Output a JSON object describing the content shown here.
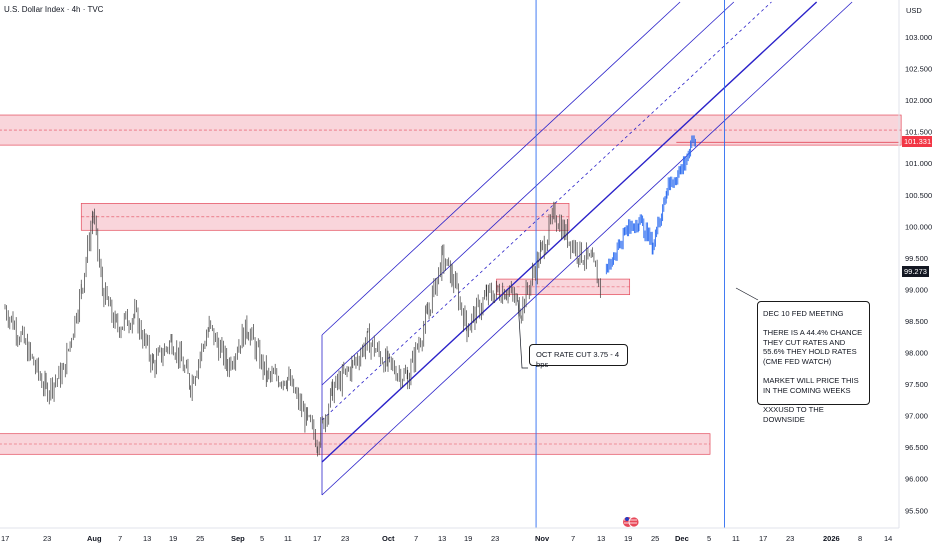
{
  "header": {
    "title": "U.S. Dollar Index · 4h · TVC",
    "unit": "USD"
  },
  "colors": {
    "zone_fill": "#f7c7cf",
    "zone_stroke": "#e34a5b",
    "channel": "#2b22c9",
    "vline": "#2f6df0",
    "candles": "#3a3a3a",
    "projection": "#2b6bf0",
    "last_price_bg": "#f23645",
    "prev_price_bg": "#131722"
  },
  "price_tags": {
    "last": "101.331",
    "prev": "99.273"
  },
  "annotations": {
    "oct_cut": "OCT RATE CUT 3.75 - 4 bps",
    "dec_fed": "DEC 10 FED MEETING\n\nTHERE IS A 44.4% CHANCE THEY CUT RATES AND 55.6% THEY HOLD RATES (CME FED WATCH)\n\nMARKET WILL PRICE THIS IN THE COMING WEEKS\n\nXXXUSD TO THE DOWNSIDE"
  },
  "chart_data": {
    "type": "candlestick",
    "title": "U.S. Dollar Index · 4h · TVC",
    "yunit": "USD",
    "ylim": [
      95.2,
      103.3
    ],
    "y_ticks": [
      "103.000",
      "102.500",
      "102.000",
      "101.500",
      "101.000",
      "100.500",
      "100.000",
      "99.500",
      "99.000",
      "98.500",
      "98.000",
      "97.500",
      "97.000",
      "96.500",
      "96.000",
      "95.500"
    ],
    "x_ticks": [
      "17",
      "23",
      "Aug",
      "7",
      "13",
      "19",
      "25",
      "Sep",
      "5",
      "11",
      "17",
      "23",
      "Oct",
      "7",
      "13",
      "19",
      "23",
      "Nov",
      "7",
      "13",
      "19",
      "25",
      "Dec",
      "5",
      "11",
      "17",
      "23",
      "2026",
      "8",
      "14"
    ],
    "last_price": 101.331,
    "marked_price": 99.273,
    "price_path": [
      [
        "Jul 17",
        98.7
      ],
      [
        "Jul 20",
        98.2
      ],
      [
        "Jul 24",
        97.4
      ],
      [
        "Jul 27",
        97.7
      ],
      [
        "Jul 30",
        99.0
      ],
      [
        "Aug 1",
        100.2
      ],
      [
        "Aug 3",
        99.0
      ],
      [
        "Aug 6",
        98.4
      ],
      [
        "Aug 10",
        98.6
      ],
      [
        "Aug 14",
        97.8
      ],
      [
        "Aug 18",
        98.2
      ],
      [
        "Aug 22",
        97.5
      ],
      [
        "Aug 26",
        98.4
      ],
      [
        "Aug 30",
        97.8
      ],
      [
        "Sep 3",
        98.4
      ],
      [
        "Sep 7",
        97.6
      ],
      [
        "Sep 11",
        97.6
      ],
      [
        "Sep 15",
        96.9
      ],
      [
        "Sep 17",
        96.6
      ],
      [
        "Sep 20",
        97.4
      ],
      [
        "Sep 24",
        97.8
      ],
      [
        "Sep 27",
        98.2
      ],
      [
        "Oct 1",
        97.8
      ],
      [
        "Oct 5",
        97.6
      ],
      [
        "Oct 9",
        98.6
      ],
      [
        "Oct 12",
        99.5
      ],
      [
        "Oct 14",
        99.2
      ],
      [
        "Oct 17",
        98.4
      ],
      [
        "Oct 21",
        98.9
      ],
      [
        "Oct 25",
        99.0
      ],
      [
        "Oct 28",
        98.7
      ],
      [
        "Nov 1",
        99.6
      ],
      [
        "Nov 4",
        100.2
      ],
      [
        "Nov 6",
        99.9
      ],
      [
        "Nov 9",
        99.6
      ],
      [
        "Nov 12",
        99.4
      ],
      [
        "Nov 14",
        99.0
      ]
    ],
    "projection_path": [
      [
        "Nov 15",
        99.3
      ],
      [
        "Nov 19",
        99.9
      ],
      [
        "Nov 22",
        100.1
      ],
      [
        "Nov 25",
        99.7
      ],
      [
        "Nov 28",
        100.6
      ],
      [
        "Dec 1",
        100.9
      ],
      [
        "Dec 4",
        101.4
      ]
    ],
    "zones": [
      {
        "from": "Jul 10",
        "to": "Jan 17",
        "low": 101.35,
        "high": 101.7
      },
      {
        "from": "Jul 30",
        "to": "Nov 7",
        "low": 100.0,
        "high": 100.3
      },
      {
        "from": "Oct 23",
        "to": "Nov 20",
        "low": 98.98,
        "high": 99.1
      },
      {
        "from": "Jul 10",
        "to": "Dec 7",
        "low": 96.45,
        "high": 96.65
      }
    ],
    "vertical_lines": [
      "Oct 31",
      "Dec 10"
    ]
  }
}
